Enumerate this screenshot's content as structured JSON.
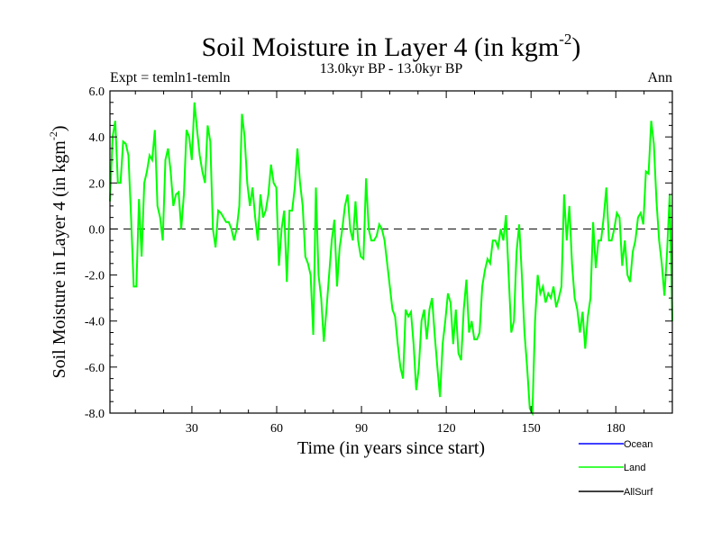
{
  "chart_data": {
    "type": "line",
    "title": "Soil Moisture in Layer 4 (in kgm",
    "title_sup": "-2",
    "title_close": ")",
    "subtitle": "13.0kyr BP - 13.0kyr BP",
    "left_label": "Expt = temln1-temln",
    "right_label": "Ann",
    "xlabel": "Time (in years since start)",
    "ylabel": "Soil Moisture in Layer 4 (in kgm",
    "ylabel_sup": "-2",
    "ylabel_close": ")",
    "xlim": [
      1,
      200
    ],
    "ylim": [
      -8,
      6
    ],
    "xticks": [
      30,
      60,
      90,
      120,
      150,
      180
    ],
    "xtick_labels": [
      "30",
      "60",
      "90",
      "120",
      "150",
      "180"
    ],
    "yticks": [
      -8,
      -6,
      -4,
      -2,
      0,
      2,
      4,
      6
    ],
    "ytick_labels": [
      "-8.0",
      "-6.0",
      "-4.0",
      "-2.0",
      "0.0",
      "2.0",
      "4.0",
      "6.0"
    ],
    "reference_line": 0,
    "legend_position": "bottom-right",
    "series": [
      {
        "name": "Ocean",
        "color": "#0000ff",
        "values": []
      },
      {
        "name": "Land",
        "color": "#00ff00",
        "values": [
          1.2,
          4.0,
          4.7,
          2.0,
          2.0,
          3.8,
          3.7,
          3.2,
          0.5,
          -2.5,
          -2.5,
          1.3,
          -1.2,
          2.0,
          2.5,
          3.2,
          3.0,
          4.3,
          1.0,
          0.5,
          -0.5,
          3.0,
          3.5,
          2.5,
          1.0,
          1.5,
          1.6,
          0.0,
          1.5,
          4.3,
          4.0,
          3.0,
          5.5,
          4.3,
          3.2,
          2.5,
          2.0,
          4.5,
          3.8,
          0.0,
          -0.8,
          0.8,
          0.7,
          0.5,
          0.3,
          0.3,
          0.0,
          -0.5,
          0.0,
          1.0,
          5.0,
          4.0,
          2.0,
          1.0,
          1.8,
          0.5,
          -0.5,
          1.5,
          0.5,
          0.8,
          1.5,
          2.8,
          2.0,
          1.8,
          -1.6,
          0.0,
          0.8,
          -2.3,
          0.8,
          0.8,
          1.8,
          3.5,
          2.0,
          1.0,
          -1.2,
          -1.5,
          -2.0,
          -4.6,
          1.8,
          -2.0,
          -3.0,
          -4.9,
          -3.5,
          -2.0,
          -0.5,
          0.4,
          -2.5,
          -0.8,
          0.0,
          1.0,
          1.5,
          0.0,
          -0.5,
          1.2,
          -0.5,
          -1.2,
          -1.3,
          2.2,
          0.0,
          -0.5,
          -0.5,
          -0.3,
          0.2,
          0.0,
          -0.5,
          -1.5,
          -2.5,
          -3.5,
          -3.8,
          -5.0,
          -6.0,
          -6.5,
          -3.5,
          -3.8,
          -3.6,
          -5.0,
          -7.0,
          -6.0,
          -4.0,
          -3.5,
          -4.8,
          -3.5,
          -3.0,
          -4.6,
          -6.0,
          -7.3,
          -5.0,
          -4.0,
          -2.8,
          -3.2,
          -5.0,
          -3.5,
          -5.4,
          -5.7,
          -3.5,
          -2.2,
          -4.5,
          -4.0,
          -4.8,
          -4.8,
          -4.5,
          -2.5,
          -1.8,
          -1.3,
          -1.5,
          -0.5,
          -0.5,
          -0.8,
          0.0,
          -0.5,
          0.6,
          -2.0,
          -4.5,
          -4.0,
          -1.0,
          0.2,
          -2.0,
          -4.5,
          -6.0,
          -7.8,
          -8.0,
          -4.0,
          -2.0,
          -2.8,
          -2.5,
          -3.2,
          -2.8,
          -3.0,
          -2.5,
          -3.4,
          -3.0,
          -2.5,
          1.5,
          -0.5,
          1.0,
          -1.5,
          -3.0,
          -3.5,
          -4.5,
          -3.6,
          -5.2,
          -3.8,
          -3.0,
          0.3,
          -1.7,
          -0.5,
          -0.5,
          0.5,
          1.8,
          -0.5,
          -0.5,
          0.0,
          0.7,
          0.5,
          -1.6,
          -0.5,
          -2.0,
          -2.3,
          -1.0,
          -0.5,
          0.5,
          0.7,
          0.2,
          2.5,
          2.4,
          4.7,
          3.7,
          1.2,
          -0.5,
          -1.5,
          -2.9,
          -1.0,
          1.5,
          -4.0
        ]
      },
      {
        "name": "AllSurf",
        "color": "#000000",
        "values": []
      }
    ]
  }
}
